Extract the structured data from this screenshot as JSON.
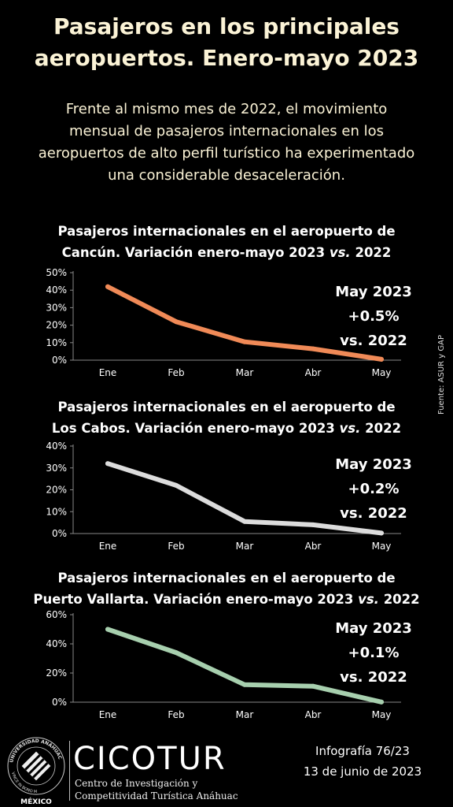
{
  "header": {
    "title": "Pasajeros en los principales aeropuertos. Enero-mayo 2023",
    "subtitle": "Frente al mismo mes de 2022, el movimiento mensual de pasajeros internacionales en los aeropuertos de alto perfil turístico ha experimentado una considerable desaceleración."
  },
  "chart_data": [
    {
      "type": "line",
      "title_line1": "Pasajeros internacionales en el aeropuerto de",
      "title_line2": "Cancún. Variación enero-mayo 2023 ",
      "title_vs": "vs.",
      "title_year": " 2022",
      "categories": [
        "Ene",
        "Feb",
        "Mar",
        "Abr",
        "May"
      ],
      "series": [
        {
          "values": [
            42,
            22,
            10.5,
            6.5,
            0.5
          ],
          "color": "#f08a57"
        }
      ],
      "y_ticks": [
        "50%",
        "40%",
        "30%",
        "20%",
        "10%",
        "0%"
      ],
      "ylim": [
        0,
        50
      ],
      "grid": false,
      "callout": {
        "line1": "May 2023",
        "line2": "+0.5%",
        "line3": "vs. 2022"
      }
    },
    {
      "type": "line",
      "title_line1": "Pasajeros internacionales en el aeropuerto de",
      "title_line2": "Los Cabos. Variación enero-mayo 2023 ",
      "title_vs": "vs.",
      "title_year": " 2022",
      "categories": [
        "Ene",
        "Feb",
        "Mar",
        "Abr",
        "May"
      ],
      "series": [
        {
          "values": [
            32,
            22,
            5.5,
            4,
            0.2
          ],
          "color": "#dcdcdc"
        }
      ],
      "y_ticks": [
        "40%",
        "30%",
        "20%",
        "10%",
        "0%"
      ],
      "ylim": [
        0,
        40
      ],
      "grid": false,
      "callout": {
        "line1": "May 2023",
        "line2": "+0.2%",
        "line3": "vs. 2022"
      }
    },
    {
      "type": "line",
      "title_line1": "Pasajeros internacionales en el aeropuerto de",
      "title_line2": "Puerto Vallarta. Variación enero-mayo 2023 ",
      "title_vs": "vs.",
      "title_year": " 2022",
      "categories": [
        "Ene",
        "Feb",
        "Mar",
        "Abr",
        "May"
      ],
      "series": [
        {
          "values": [
            50,
            34,
            12,
            11,
            0.1
          ],
          "color": "#a7cfae"
        }
      ],
      "y_ticks": [
        "60%",
        "40%",
        "20%",
        "0%"
      ],
      "ylim": [
        0,
        60
      ],
      "grid": false,
      "callout": {
        "line1": "May 2023",
        "line2": "+0.1%",
        "line3": "vs. 2022"
      }
    }
  ],
  "source": "Fuente: ASUR y GAP",
  "footer": {
    "brand": "CICOTUR",
    "brand_sub1": "Centro de Investigación y",
    "brand_sub2": "Competitividad Turística Anáhuac",
    "logo_text_top": "UNIVERSIDAD ANÁHUAC",
    "logo_text_side": "VINCE IN BONO MALUM",
    "logo_text_bottom": "MÉXICO",
    "infographic": "Infografía 76/23",
    "date": "13 de junio de 2023"
  }
}
